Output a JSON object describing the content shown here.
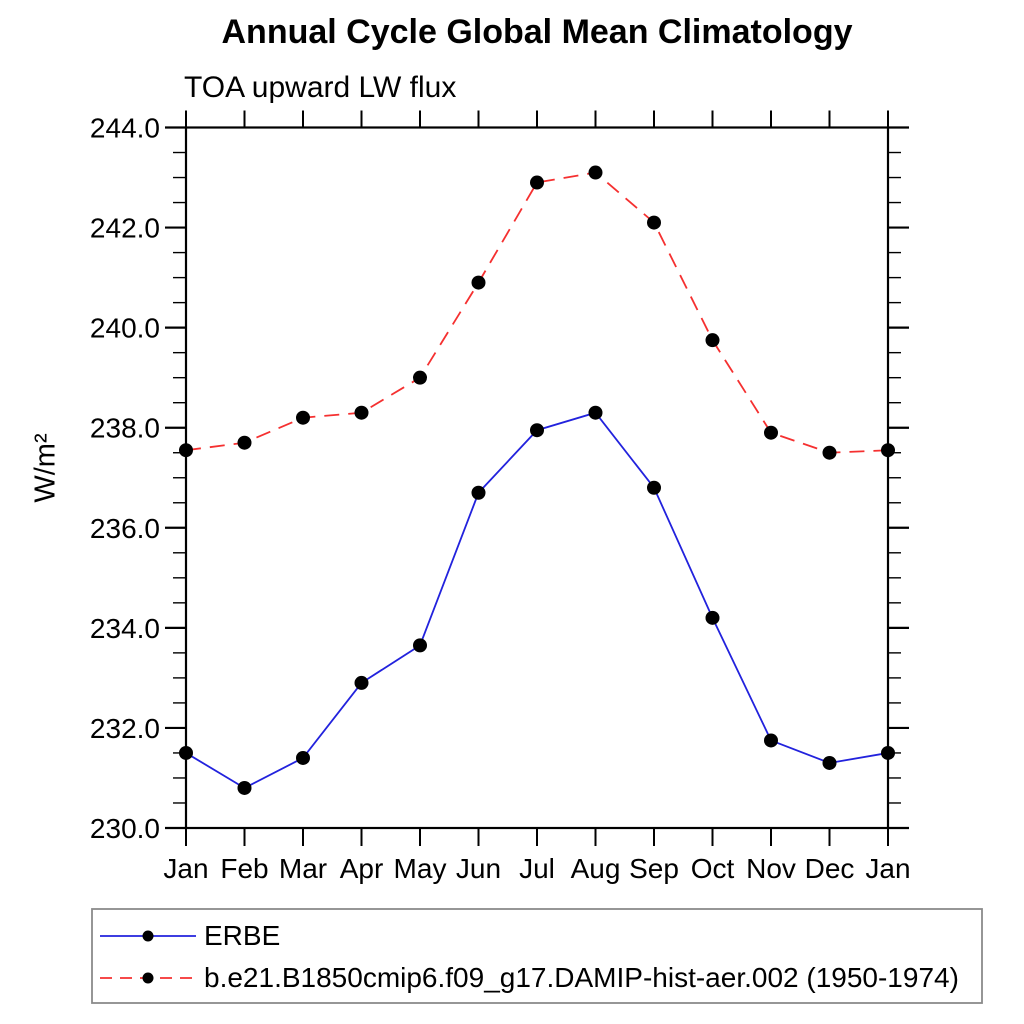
{
  "title": "Annual Cycle Global Mean Climatology",
  "subtitle": "TOA upward LW flux",
  "y_axis_label": "W/m²",
  "legend": {
    "entries": [
      {
        "label": "ERBE",
        "color": "#2222dd",
        "line_style": "solid",
        "marker": "filled-circle",
        "marker_color": "#000000"
      },
      {
        "label": "b.e21.B1850cmip6.f09_g17.DAMIP-hist-aer.002 (1950-1974)",
        "color": "#f53030",
        "line_style": "dashed",
        "marker": "filled-circle",
        "marker_color": "#000000"
      }
    ],
    "border_color": "#8a8a8a",
    "position": "bottom-left"
  },
  "chart_data": {
    "type": "line",
    "title": "Annual Cycle Global Mean Climatology",
    "subtitle": "TOA upward LW flux",
    "xlabel": "",
    "ylabel": "W/m²",
    "categories": [
      "Jan",
      "Feb",
      "Mar",
      "Apr",
      "May",
      "Jun",
      "Jul",
      "Aug",
      "Sep",
      "Oct",
      "Nov",
      "Dec",
      "Jan"
    ],
    "series": [
      {
        "name": "ERBE",
        "color": "#2222dd",
        "line_style": "solid",
        "marker": "filled-circle",
        "marker_color": "#000000",
        "values": [
          231.5,
          230.8,
          231.4,
          232.9,
          233.65,
          236.7,
          237.95,
          238.3,
          236.8,
          234.2,
          231.75,
          231.3,
          231.5
        ]
      },
      {
        "name": "b.e21.B1850cmip6.f09_g17.DAMIP-hist-aer.002 (1950-1974)",
        "color": "#f53030",
        "line_style": "dashed",
        "marker": "filled-circle",
        "marker_color": "#000000",
        "values": [
          237.55,
          237.7,
          238.2,
          238.3,
          239.0,
          240.9,
          242.9,
          243.1,
          242.1,
          239.75,
          237.9,
          237.5,
          237.55
        ]
      }
    ],
    "ylim": [
      230.0,
      244.0
    ],
    "ytick_major": 2.0,
    "ytick_minor": 0.5,
    "y_tick_values": [
      230,
      232,
      234,
      236,
      238,
      240,
      242,
      244
    ],
    "y_tick_labels": [
      "230.0",
      "232.0",
      "234.0",
      "236.0",
      "238.0",
      "240.0",
      "242.0",
      "244.0"
    ],
    "grid": false,
    "legend_position": "bottom-left",
    "frame": "box-with-outward-ticks"
  }
}
